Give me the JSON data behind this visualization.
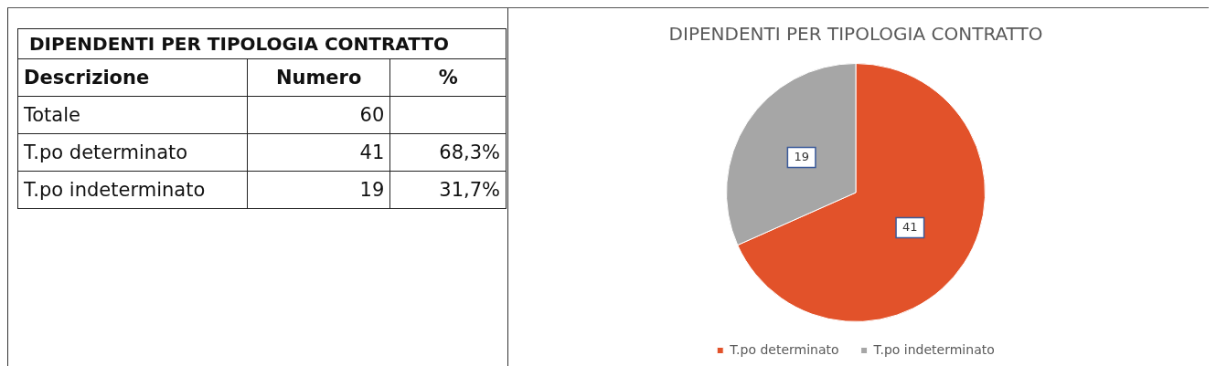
{
  "chart_data": [
    {
      "type": "other",
      "title": "DIPENDENTI PER TIPOLOGIA CONTRATTO",
      "annotations": [
        "Descrizione",
        "Numero",
        "%"
      ],
      "categories": [
        "Totale",
        "T.po determinato",
        "T.po indeterminato"
      ],
      "cell_labels": [
        [
          "60",
          null
        ],
        [
          "41",
          "68,3%"
        ],
        [
          "19",
          "31,7%"
        ]
      ]
    },
    {
      "type": "pie",
      "title": "DIPENDENTI PER TIPOLOGIA CONTRATTO",
      "categories": [
        "T.po determinato",
        "T.po indeterminato"
      ],
      "values": [
        41,
        19
      ],
      "colors": [
        "#e2522a",
        "#a6a6a6"
      ],
      "data_labels": true,
      "legend": "bottom"
    }
  ]
}
